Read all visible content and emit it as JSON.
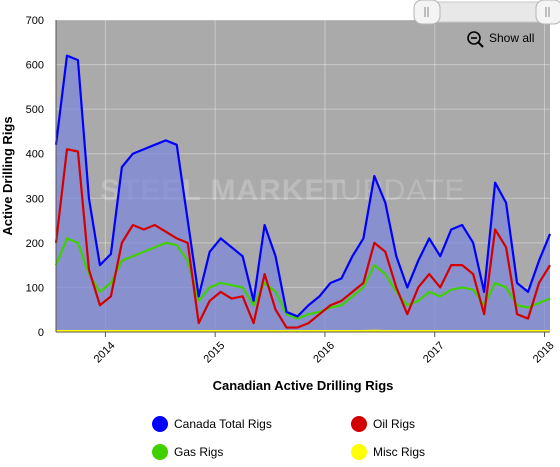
{
  "colors": {
    "plot_bg": "#aaaaaa",
    "canada_total": "#0000ff",
    "oil": "#d40000",
    "gas": "#3fd000",
    "misc": "#ffff00",
    "fill_total": "#7b84dd"
  },
  "controls": {
    "show_all_label": "Show all",
    "zoom_icon": "zoom-out-icon",
    "scroll_handle_icon": "grip-icon"
  },
  "watermark": {
    "text_left": "STEEL MARKET",
    "text_right": "UPDATE"
  },
  "chart_data": {
    "type": "line",
    "title": "",
    "xlabel": "Canadian Active Drilling Rigs",
    "ylabel": "Active Drilling Rigs",
    "ylim": [
      0,
      700
    ],
    "y_ticks": [
      0,
      100,
      200,
      300,
      400,
      500,
      600,
      700
    ],
    "xlim": [
      2013.85,
      2018.35
    ],
    "x_ticks": [
      {
        "value": 2014.3,
        "label": "2014"
      },
      {
        "value": 2015.3,
        "label": "2015"
      },
      {
        "value": 2016.3,
        "label": "2016"
      },
      {
        "value": 2017.3,
        "label": "2017"
      },
      {
        "value": 2018.3,
        "label": "2018"
      }
    ],
    "grid": true,
    "legend_position": "bottom",
    "x": [
      2013.85,
      2013.95,
      2014.05,
      2014.15,
      2014.25,
      2014.35,
      2014.45,
      2014.55,
      2014.65,
      2014.75,
      2014.85,
      2014.95,
      2015.05,
      2015.15,
      2015.25,
      2015.35,
      2015.45,
      2015.55,
      2015.65,
      2015.75,
      2015.85,
      2015.95,
      2016.05,
      2016.15,
      2016.25,
      2016.35,
      2016.45,
      2016.55,
      2016.65,
      2016.75,
      2016.85,
      2016.95,
      2017.05,
      2017.15,
      2017.25,
      2017.35,
      2017.45,
      2017.55,
      2017.65,
      2017.75,
      2017.85,
      2017.95,
      2018.05,
      2018.15,
      2018.25,
      2018.35
    ],
    "series": [
      {
        "name": "Canada Total Rigs",
        "color_key": "canada_total",
        "values": [
          420,
          620,
          610,
          300,
          150,
          175,
          370,
          400,
          410,
          420,
          430,
          420,
          250,
          80,
          180,
          210,
          190,
          170,
          70,
          240,
          170,
          45,
          35,
          60,
          80,
          110,
          120,
          170,
          210,
          350,
          290,
          170,
          100,
          160,
          210,
          170,
          230,
          240,
          200,
          90,
          335,
          290,
          110,
          90,
          160,
          220
        ]
      },
      {
        "name": "Oil Rigs",
        "color_key": "oil",
        "values": [
          200,
          410,
          405,
          140,
          60,
          80,
          200,
          240,
          230,
          240,
          225,
          210,
          200,
          20,
          70,
          90,
          75,
          80,
          20,
          130,
          50,
          10,
          10,
          20,
          40,
          60,
          70,
          90,
          110,
          200,
          180,
          100,
          40,
          100,
          130,
          100,
          150,
          150,
          130,
          40,
          230,
          190,
          40,
          30,
          110,
          150
        ]
      },
      {
        "name": "Gas Rigs",
        "color_key": "gas",
        "values": [
          150,
          210,
          200,
          130,
          90,
          110,
          160,
          170,
          180,
          190,
          200,
          195,
          160,
          70,
          100,
          110,
          105,
          100,
          60,
          110,
          90,
          40,
          30,
          40,
          45,
          55,
          60,
          80,
          100,
          150,
          130,
          90,
          60,
          70,
          90,
          80,
          95,
          100,
          95,
          60,
          110,
          100,
          60,
          55,
          65,
          75
        ]
      },
      {
        "name": "Misc Rigs",
        "color_key": "misc",
        "values": [
          2,
          2,
          2,
          2,
          2,
          2,
          2,
          2,
          2,
          2,
          2,
          2,
          2,
          2,
          2,
          2,
          2,
          2,
          2,
          2,
          2,
          2,
          2,
          2,
          2,
          2,
          2,
          2,
          2,
          3,
          2,
          2,
          2,
          2,
          2,
          2,
          2,
          2,
          2,
          2,
          2,
          2,
          2,
          2,
          2,
          2
        ]
      }
    ]
  }
}
